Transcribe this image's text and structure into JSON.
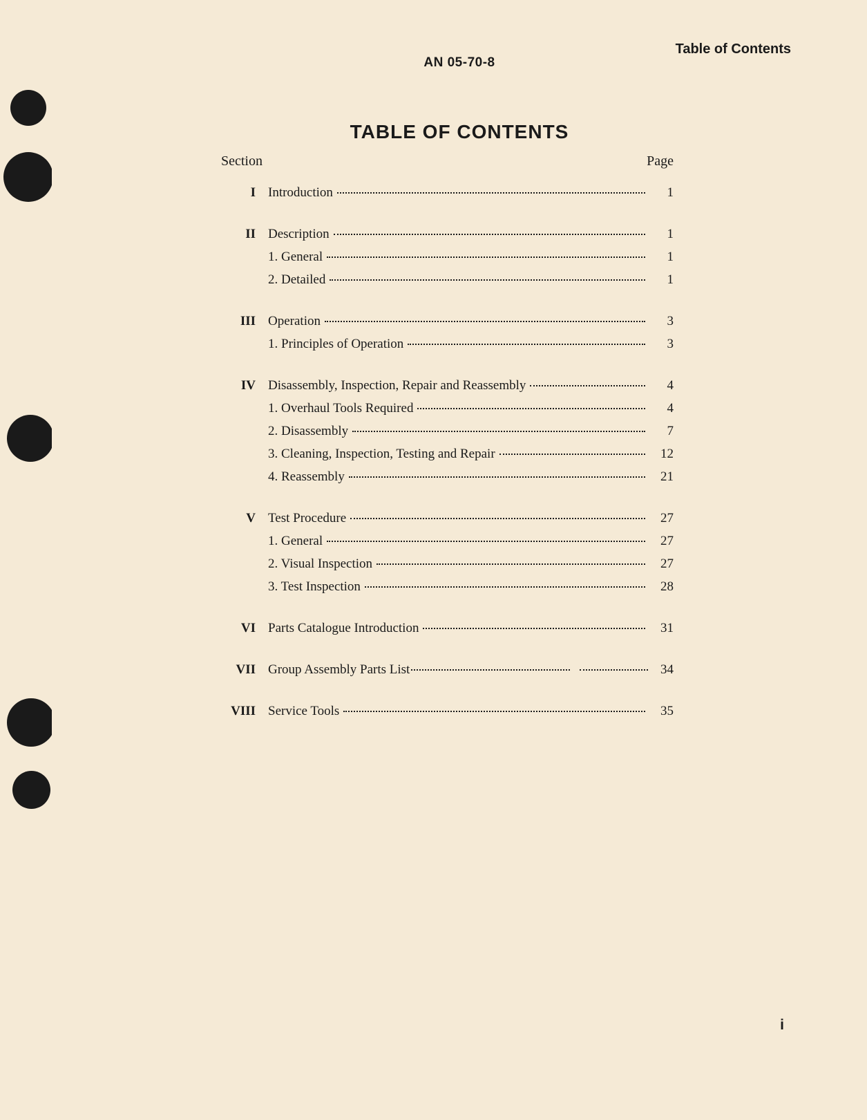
{
  "header": {
    "label": "Table of Contents",
    "doc_number": "AN 05-70-8"
  },
  "title": "TABLE OF CONTENTS",
  "labels": {
    "section": "Section",
    "page": "Page"
  },
  "sections": [
    {
      "num": "I",
      "title": "Introduction",
      "page": "1",
      "subs": []
    },
    {
      "num": "II",
      "title": "Description",
      "page": "1",
      "subs": [
        {
          "title": "1. General",
          "page": "1"
        },
        {
          "title": "2. Detailed",
          "page": "1"
        }
      ]
    },
    {
      "num": "III",
      "title": "Operation",
      "page": "3",
      "subs": [
        {
          "title": "1. Principles of Operation",
          "page": "3"
        }
      ]
    },
    {
      "num": "IV",
      "title": "Disassembly, Inspection, Repair and Reassembly",
      "page": "4",
      "subs": [
        {
          "title": "1. Overhaul Tools Required",
          "page": "4"
        },
        {
          "title": "2. Disassembly",
          "page": "7"
        },
        {
          "title": "3. Cleaning, Inspection, Testing and Repair",
          "page": "12"
        },
        {
          "title": "4. Reassembly",
          "page": "21"
        }
      ]
    },
    {
      "num": "V",
      "title": "Test Procedure",
      "page": "27",
      "subs": [
        {
          "title": "1. General",
          "page": "27"
        },
        {
          "title": "2. Visual Inspection",
          "page": "27"
        },
        {
          "title": "3. Test  Inspection",
          "page": "28"
        }
      ]
    },
    {
      "num": "VI",
      "title": "Parts Catalogue Introduction",
      "page": "31",
      "subs": []
    },
    {
      "num": "VII",
      "title": "Group Assembly Parts List",
      "page": "34",
      "subs": [],
      "gap_dots": true
    },
    {
      "num": "VIII",
      "title": "Service Tools",
      "page": "35",
      "subs": []
    }
  ],
  "page_number": "i",
  "colors": {
    "background": "#f5ead6",
    "text": "#1a1a1a",
    "hole": "#1a1a1a"
  },
  "fontsizes": {
    "title": 28,
    "header": 20,
    "body": 19
  }
}
